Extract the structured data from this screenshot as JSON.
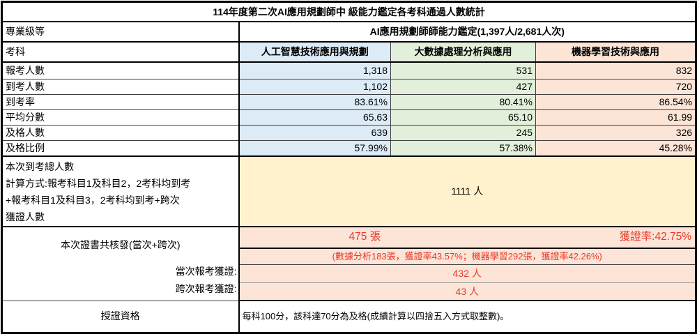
{
  "colors": {
    "column_ai_bg": "#DDEBF7",
    "column_bigdata_bg": "#E2EFDA",
    "column_ml_bg": "#FCE4D6",
    "total_row_bg": "#FFF2CC",
    "certificate_rows_bg": "#FCE4D6",
    "certificate_text": "#E8392C",
    "grid_border": "#000000"
  },
  "table": {
    "title": "114年度第二次AI應用規劃師中 級能力鑑定各考科通過人數統計",
    "level": {
      "label": "專業級等",
      "value": "AI應用規劃師師能力鑑定(1,397人/2,681人次)"
    },
    "subjects": {
      "label": "考科",
      "col1": "人工智慧技術應用與規劃",
      "col2": "大數據處理分析與應用",
      "col3": "機器學習技術與應用"
    },
    "stat_rows": [
      {
        "label": "報考人數",
        "v1": "1,318",
        "v2": "531",
        "v3": "832"
      },
      {
        "label": "到考人數",
        "v1": "1,102",
        "v2": "427",
        "v3": "720"
      },
      {
        "label": "到考率",
        "v1": "83.61%",
        "v2": "80.41%",
        "v3": "86.54%"
      },
      {
        "label": "平均分數",
        "v1": "65.63",
        "v2": "65.10",
        "v3": "61.99"
      },
      {
        "label": "及格人數",
        "v1": "639",
        "v2": "245",
        "v3": "326"
      },
      {
        "label": "及格比例",
        "v1": "57.99%",
        "v2": "57.38%",
        "v3": "45.28%"
      }
    ],
    "total": {
      "label": "本次到考總人數\n計算方式:報考科目1及科目2，2考科均到考\n+報考科目1及科目3，2考科均到考+跨次\n獲證人數",
      "value": "1111 人"
    },
    "cert": {
      "label": "本次證書共核發(當次+跨次)",
      "count": "475 張",
      "rate": "獲證率:42.75%",
      "detail": "(數據分析183張，獲證率43.57%；機器學習292張，獲證率42.26%)",
      "current_label": "當次報考獲證:",
      "current_value": "432 人",
      "cross_label": "跨次報考獲證:",
      "cross_value": "43 人"
    },
    "qualification": {
      "label": "授證資格",
      "value": "每科100分，該科達70分為及格(成績計算以四捨五入方式取整數)。"
    }
  },
  "chart_data": {
    "type": "table",
    "title": "114年度第二次AI應用規劃師中 級能力鑑定各考科通過人數統計",
    "subtitle": "AI應用規劃師師能力鑑定(1,397人/2,681人次)",
    "columns": [
      "考科",
      "人工智慧技術應用與規劃",
      "大數據處理分析與應用",
      "機器學習技術與應用"
    ],
    "rows": [
      [
        "報考人數",
        1318,
        531,
        832
      ],
      [
        "到考人數",
        1102,
        427,
        720
      ],
      [
        "到考率",
        "83.61%",
        "80.41%",
        "86.54%"
      ],
      [
        "平均分數",
        65.63,
        65.1,
        61.99
      ],
      [
        "及格人數",
        639,
        245,
        326
      ],
      [
        "及格比例",
        "57.99%",
        "57.38%",
        "45.28%"
      ]
    ],
    "annotations": [
      "本次到考總人數 計算方式:報考科目1及科目2，2考科均到考+報考科目1及科目3，2考科均到考+跨次獲證人數 = 1111 人",
      "本次證書共核發(當次+跨次): 475 張, 獲證率:42.75%",
      "(數據分析183張，獲證率43.57%；機器學習292張，獲證率42.26%)",
      "當次報考獲證: 432 人",
      "跨次報考獲證: 43 人",
      "授證資格: 每科100分，該科達70分為及格(成績計算以四捨五入方式取整數)。"
    ]
  }
}
